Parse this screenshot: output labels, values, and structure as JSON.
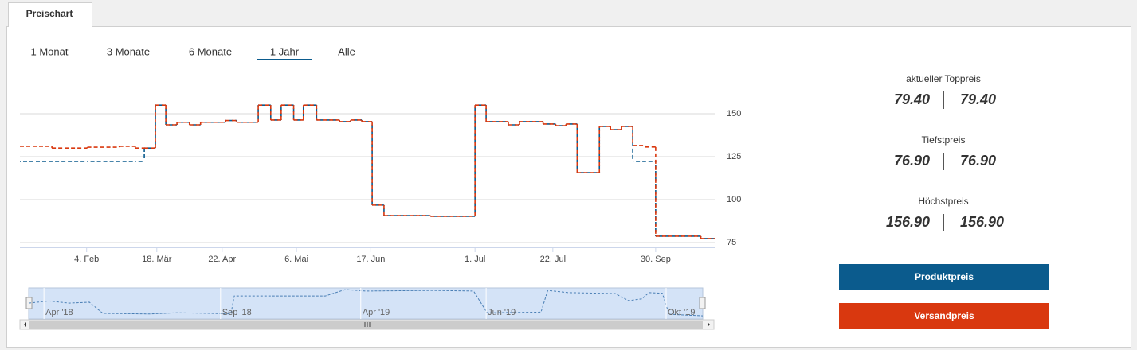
{
  "tab": "Preischart",
  "ranges": [
    "1 Monat",
    "3 Monate",
    "6 Monate",
    "1 Jahr",
    "Alle"
  ],
  "selected_range_index": 3,
  "stats": [
    {
      "label": "aktueller Toppreis",
      "values": [
        "79.40",
        "79.40"
      ]
    },
    {
      "label": "Tiefstpreis",
      "values": [
        "76.90",
        "76.90"
      ]
    },
    {
      "label": "Höchstpreis",
      "values": [
        "156.90",
        "156.90"
      ]
    }
  ],
  "chart_data": {
    "type": "line",
    "step": true,
    "grid": true,
    "x": [
      0,
      4.6,
      9.7,
      14.3,
      16.6,
      17.9,
      19.5,
      21,
      22.6,
      24.4,
      26,
      29.6,
      31.2,
      34.3,
      36.1,
      37.6,
      39.4,
      40.8,
      42.7,
      46,
      47.6,
      49.2,
      50.7,
      52.4,
      59.1,
      65.5,
      67.1,
      70.3,
      71.9,
      75.3,
      77.1,
      78.6,
      80.2,
      83.4,
      85,
      86.6,
      88.2,
      90,
      91.5,
      98
    ],
    "xlim": [
      0,
      100
    ],
    "xticks": [
      {
        "value": 9.6,
        "label": "4. Feb"
      },
      {
        "value": 19.7,
        "label": "18. Mär"
      },
      {
        "value": 29.1,
        "label": "22. Apr"
      },
      {
        "value": 39.8,
        "label": "6. Mai"
      },
      {
        "value": 50.5,
        "label": "17. Jun"
      },
      {
        "value": 65.5,
        "label": "1. Jul"
      },
      {
        "value": 76.7,
        "label": "22. Jul"
      },
      {
        "value": 91.5,
        "label": "30. Sep"
      }
    ],
    "ylim": [
      72.2,
      172.2
    ],
    "yticks": [
      75,
      100,
      125,
      150
    ],
    "series": [
      {
        "name": "Produktpreis",
        "color": "#0b5b8d",
        "values": [
          122.2,
          122.2,
          122.2,
          122.2,
          122.2,
          130,
          155,
          143.5,
          145,
          143.5,
          145,
          146,
          145,
          155,
          146.3,
          155,
          146.3,
          155,
          146.3,
          145.4,
          146.3,
          145.4,
          96.8,
          90.7,
          90.3,
          155,
          145.4,
          143.5,
          145.4,
          144,
          143,
          144,
          115.7,
          142.6,
          140.7,
          142.6,
          122.2,
          122.2,
          78.7,
          77.3
        ]
      },
      {
        "name": "Versandpreis",
        "color": "#d9380f",
        "values": [
          131,
          130,
          130.5,
          131,
          130,
          130,
          155,
          143.5,
          145,
          143.5,
          145,
          146,
          145,
          155,
          146.3,
          155,
          146.3,
          155,
          146.3,
          145.4,
          146.3,
          145.4,
          96.8,
          90.7,
          90.3,
          155,
          145.4,
          143.5,
          145.4,
          144,
          143,
          144,
          115.7,
          142.6,
          140.7,
          142.6,
          131.5,
          130.6,
          78.7,
          77.3
        ]
      }
    ],
    "navigator": {
      "x": [
        0,
        3,
        6,
        9,
        11,
        18,
        22,
        27,
        30,
        30.5,
        44,
        47,
        50,
        60,
        66,
        68,
        76,
        77,
        80,
        87,
        89,
        91,
        92,
        94,
        95,
        100
      ],
      "values": [
        121,
        128,
        121,
        124,
        88,
        86,
        90,
        88,
        86,
        144,
        144,
        165,
        160,
        162,
        160,
        90,
        92,
        162,
        155,
        152,
        129,
        135,
        155,
        153,
        85,
        80
      ],
      "xlim": [
        0,
        100
      ],
      "ylim": [
        70,
        170
      ],
      "xticks": [
        {
          "value": 2.5,
          "label": "Apr '18"
        },
        {
          "value": 28.7,
          "label": "Sep '18"
        },
        {
          "value": 49.5,
          "label": "Apr '19"
        },
        {
          "value": 68.1,
          "label": "Jun '19"
        },
        {
          "value": 94.8,
          "label": "Okt '19"
        }
      ]
    }
  }
}
